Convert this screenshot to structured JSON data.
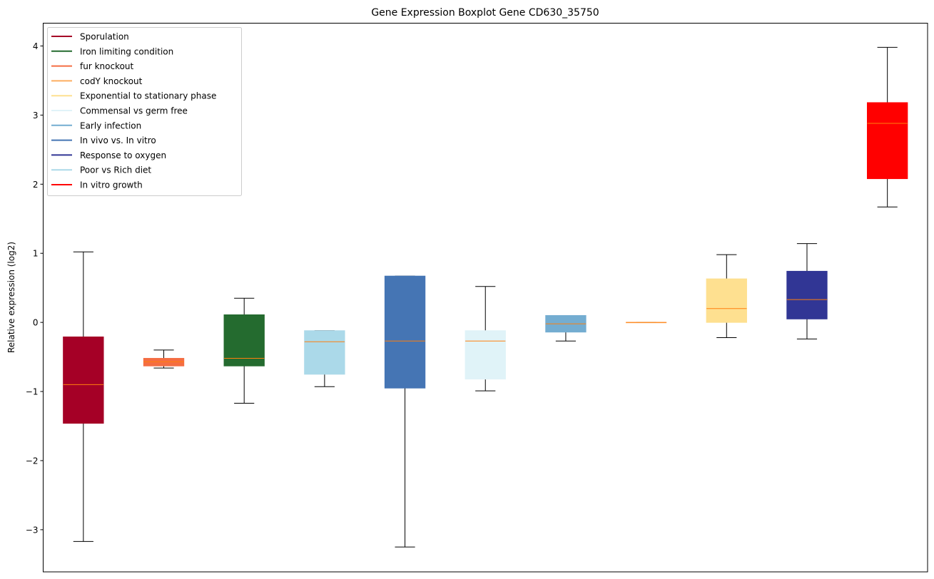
{
  "chart_data": {
    "type": "box",
    "title": "Gene Expression Boxplot Gene CD630_35750",
    "xlabel": "",
    "ylabel": "Relative expression (log2)",
    "ylim": [
      -3.61,
      4.33
    ],
    "yticks": [
      -3,
      -2,
      -1,
      0,
      1,
      2,
      3,
      4
    ],
    "ytick_labels": [
      "−3",
      "−2",
      "−1",
      "0",
      "1",
      "2",
      "3",
      "4"
    ],
    "grid": false,
    "legend_position": "top-left",
    "median_color": "#ff7f0e",
    "boxes": [
      {
        "color": "#a50026",
        "whislo": -3.17,
        "q1": -1.46,
        "med": -0.9,
        "q3": -0.21,
        "whishi": 1.02
      },
      {
        "color": "#f46d43",
        "whislo": -0.66,
        "q1": -0.63,
        "med": -0.57,
        "q3": -0.52,
        "whishi": -0.4
      },
      {
        "color": "#246b2f",
        "whislo": -1.17,
        "q1": -0.63,
        "med": -0.52,
        "q3": 0.11,
        "whishi": 0.35
      },
      {
        "color": "#abd9e9",
        "whislo": -0.93,
        "q1": -0.75,
        "med": -0.28,
        "q3": -0.12,
        "whishi": -0.12
      },
      {
        "color": "#4575b4",
        "whislo": -3.25,
        "q1": -0.95,
        "med": -0.27,
        "q3": 0.67,
        "whishi": 0.67
      },
      {
        "color": "#e0f3f8",
        "whislo": -0.99,
        "q1": -0.82,
        "med": -0.27,
        "q3": -0.12,
        "whishi": 0.52
      },
      {
        "color": "#74add1",
        "whislo": -0.27,
        "q1": -0.14,
        "med": -0.02,
        "q3": 0.1,
        "whishi": 0.1
      },
      {
        "color": "#fdae61",
        "whislo": 0.0,
        "q1": 0.0,
        "med": 0.0,
        "q3": 0.0,
        "whishi": 0.0
      },
      {
        "color": "#fee090",
        "whislo": -0.22,
        "q1": 0.0,
        "med": 0.2,
        "q3": 0.63,
        "whishi": 0.98
      },
      {
        "color": "#313695",
        "whislo": -0.24,
        "q1": 0.05,
        "med": 0.33,
        "q3": 0.74,
        "whishi": 1.14
      },
      {
        "color": "#ff0000",
        "whislo": 1.67,
        "q1": 2.08,
        "med": 2.88,
        "q3": 3.18,
        "whishi": 3.98
      }
    ],
    "legend": [
      {
        "label": "Sporulation",
        "color": "#a50026"
      },
      {
        "label": "Iron limiting condition",
        "color": "#246b2f"
      },
      {
        "label": "fur knockout",
        "color": "#f46d43"
      },
      {
        "label": "codY knockout",
        "color": "#fdae61"
      },
      {
        "label": "Exponential to stationary phase",
        "color": "#fee090"
      },
      {
        "label": "Commensal vs germ free",
        "color": "#e0f3f8"
      },
      {
        "label": "Early infection",
        "color": "#74add1"
      },
      {
        "label": "In vivo vs. In vitro",
        "color": "#4575b4"
      },
      {
        "label": "Response to oxygen",
        "color": "#313695"
      },
      {
        "label": "Poor vs Rich diet",
        "color": "#abd9e9"
      },
      {
        "label": "In vitro growth",
        "color": "#ff0000"
      }
    ]
  }
}
